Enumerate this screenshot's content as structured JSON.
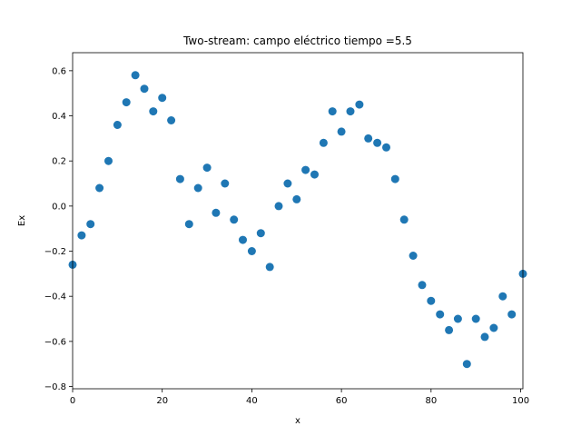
{
  "chart_data": {
    "type": "scatter",
    "title": "Two-stream: campo eléctrico  tiempo =5.5",
    "xlabel": "x",
    "ylabel": "Ex",
    "xlim": [
      0,
      100.5
    ],
    "ylim": [
      -0.81,
      0.68
    ],
    "xticks": [
      0,
      20,
      40,
      60,
      80,
      100
    ],
    "yticks": [
      -0.8,
      -0.6,
      -0.4,
      -0.2,
      0.0,
      0.2,
      0.4,
      0.6
    ],
    "xtick_labels": [
      "0",
      "20",
      "40",
      "60",
      "80",
      "100"
    ],
    "ytick_labels": [
      "−0.8",
      "−0.6",
      "−0.4",
      "−0.2",
      "0.0",
      "0.2",
      "0.4",
      "0.6"
    ],
    "grid": false,
    "marker_color": "#1f77b4",
    "series": [
      {
        "x": [
          0,
          2,
          4,
          6,
          8,
          10,
          12,
          14,
          16,
          18,
          20,
          22,
          24,
          26,
          28,
          30,
          32,
          34,
          36,
          38,
          40,
          42,
          44,
          46,
          48,
          50,
          52,
          54,
          56,
          58,
          60,
          62,
          64,
          66,
          68,
          70,
          72,
          74,
          76,
          78,
          80,
          82,
          84,
          86,
          88,
          90,
          92,
          94,
          96,
          98,
          100.5
        ],
        "y": [
          -0.26,
          -0.13,
          -0.08,
          0.08,
          0.2,
          0.36,
          0.46,
          0.58,
          0.52,
          0.42,
          0.48,
          0.38,
          0.12,
          -0.08,
          0.08,
          0.17,
          -0.03,
          0.1,
          -0.06,
          -0.15,
          -0.2,
          -0.12,
          -0.27,
          0.0,
          0.1,
          0.03,
          0.16,
          0.14,
          0.28,
          0.42,
          0.33,
          0.42,
          0.45,
          0.3,
          0.28,
          0.26,
          0.12,
          -0.06,
          -0.22,
          -0.35,
          -0.42,
          -0.48,
          -0.55,
          -0.5,
          -0.7,
          -0.5,
          -0.58,
          -0.54,
          -0.4,
          -0.48,
          -0.3
        ]
      }
    ]
  }
}
